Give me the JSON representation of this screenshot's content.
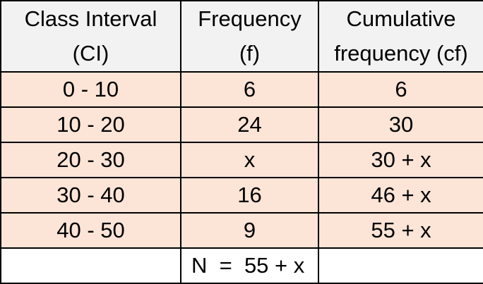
{
  "table": {
    "headers": [
      {
        "line1": "Class Interval",
        "line2": "(CI)"
      },
      {
        "line1": "Frequency",
        "line2": "(f)"
      },
      {
        "line1": "Cumulative",
        "line2": "frequency (cf)"
      }
    ],
    "rows": [
      {
        "ci": "0 - 10",
        "f": "6",
        "cf": "6"
      },
      {
        "ci": "10 - 20",
        "f": "24",
        "cf": "30"
      },
      {
        "ci": "20 - 30",
        "f": "x",
        "cf": "30 + x"
      },
      {
        "ci": "30 - 40",
        "f": "16",
        "cf": "46 + x"
      },
      {
        "ci": "40 - 50",
        "f": "9",
        "cf": "55 + x"
      }
    ],
    "total": {
      "ci": "",
      "f": "N  =  55 + x",
      "cf": ""
    }
  },
  "colors": {
    "header_bg": "#f2f2f2",
    "row_bg": "#fce4d6",
    "border": "#000000"
  }
}
